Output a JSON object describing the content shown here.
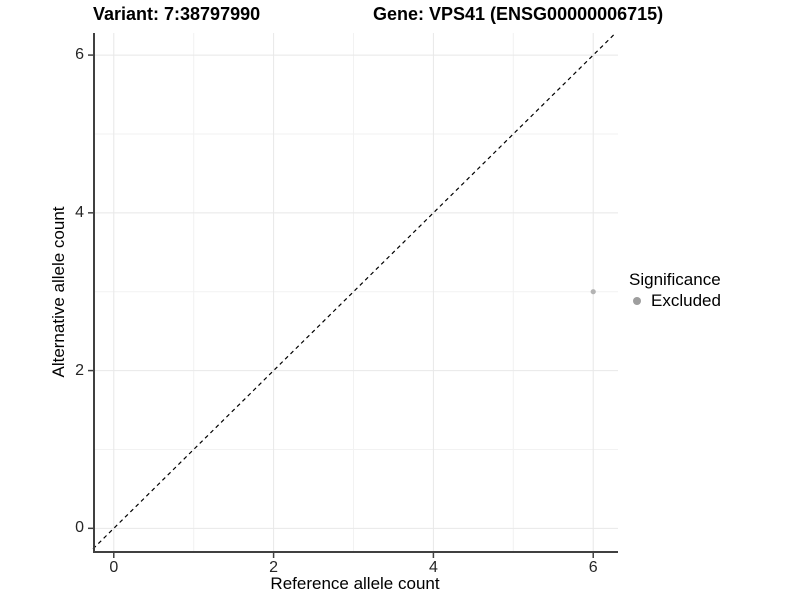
{
  "titles": {
    "variant": "Variant: 7:38797990",
    "gene": "Gene: VPS41 (ENSG00000006715)"
  },
  "axes": {
    "x": {
      "title": "Reference allele count",
      "tick_labels": [
        "0",
        "2",
        "4",
        "6"
      ]
    },
    "y": {
      "title": "Alternative allele count",
      "tick_labels": [
        "0",
        "2",
        "4",
        "6"
      ]
    }
  },
  "legend": {
    "title": "Significance",
    "items": [
      {
        "label": "Excluded",
        "color": "#9e9e9e"
      }
    ]
  },
  "colors": {
    "background": "#ffffff",
    "grid_major": "#e8e8e8",
    "grid_minor": "#f2f2f2",
    "axis_line": "#404040",
    "tick_mark": "#404040",
    "reference_line": "#000000",
    "point": "#b3b3b3",
    "text": "#000000"
  },
  "chart_data": {
    "type": "scatter",
    "title": "Variant: 7:38797990   Gene: VPS41 (ENSG00000006715)",
    "xlabel": "Reference allele count",
    "ylabel": "Alternative allele count",
    "xlim": [
      -0.26,
      6.31
    ],
    "ylim": [
      -0.3,
      6.28
    ],
    "x_ticks": [
      0,
      2,
      4,
      6
    ],
    "y_ticks": [
      0,
      2,
      4,
      6
    ],
    "x_minor_ticks": [
      1,
      3,
      5
    ],
    "y_minor_ticks": [
      1,
      3,
      5
    ],
    "grid": true,
    "legend_position": "right",
    "series": [
      {
        "name": "Excluded",
        "color": "#b3b3b3",
        "point_radius": 2.6,
        "points": [
          {
            "x": 6,
            "y": 3
          }
        ]
      }
    ],
    "reference_line": {
      "type": "identity",
      "equation": "y = x",
      "style": "dashed",
      "color": "#000000"
    }
  }
}
